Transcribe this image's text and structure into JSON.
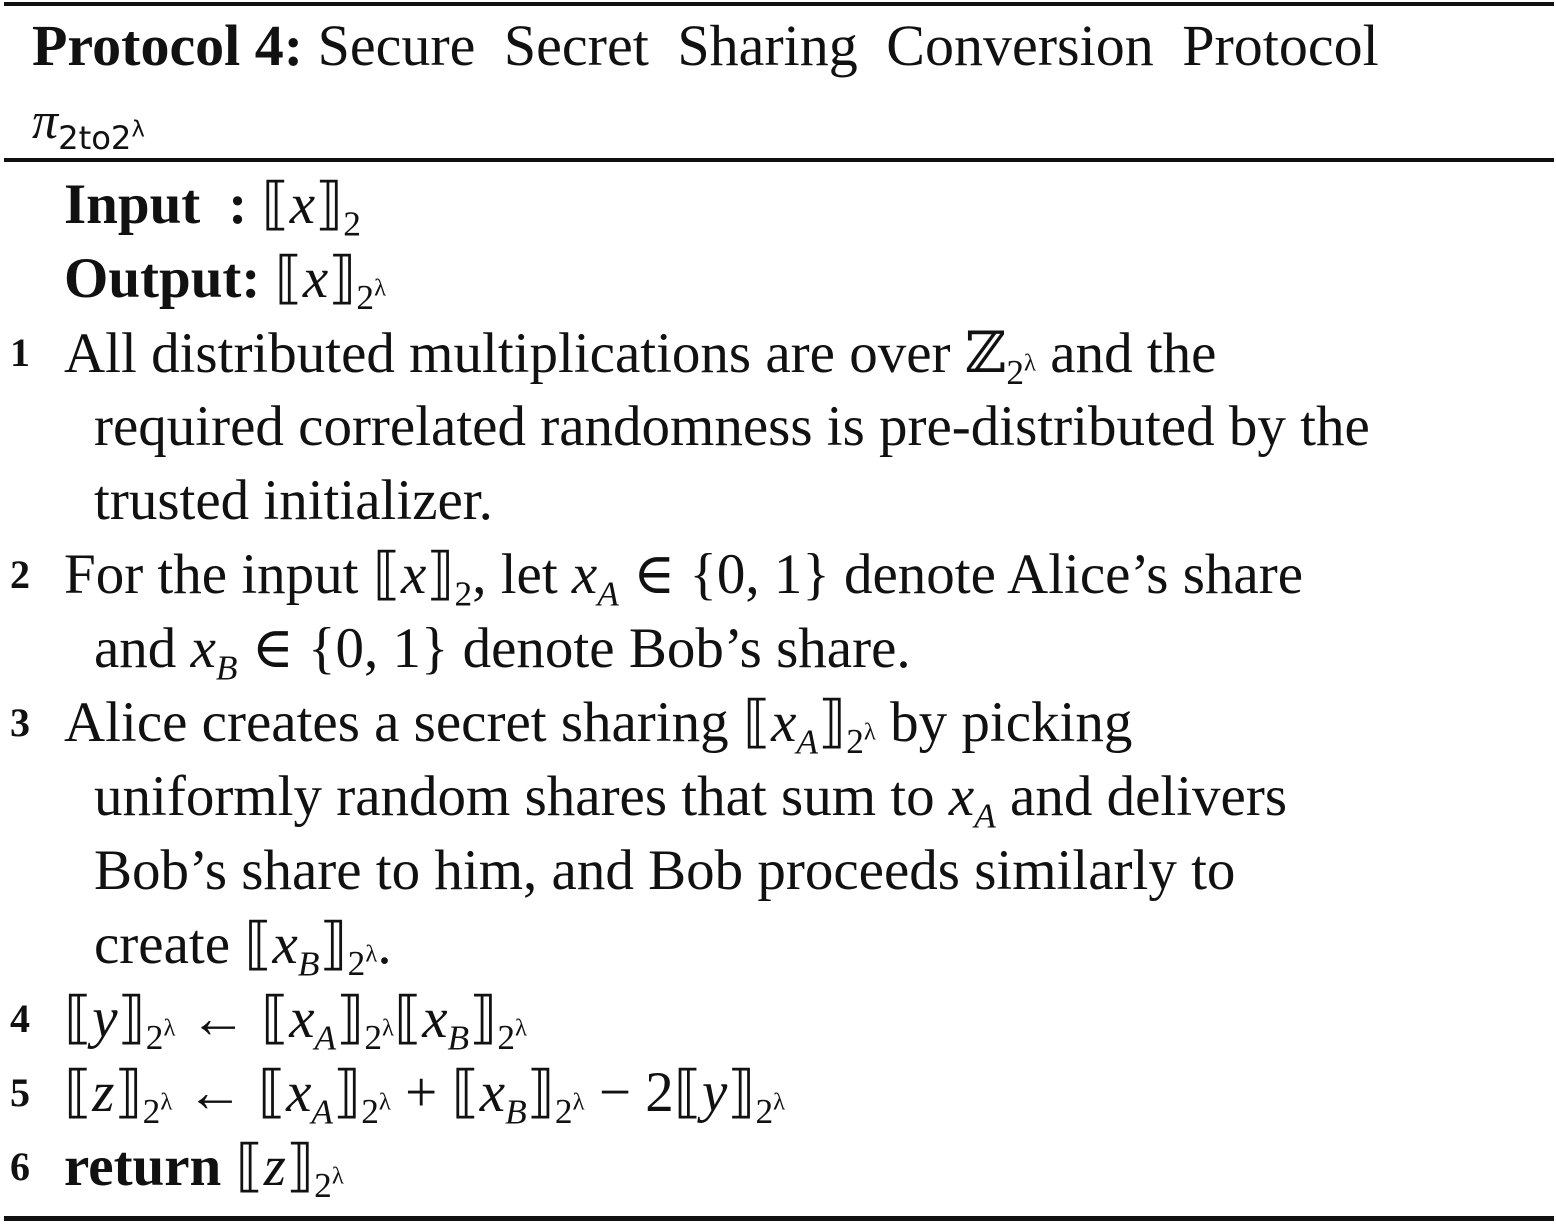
{
  "caption": {
    "label": "Protocol 4:",
    "title": "Secure Secret Sharing Conversion Protocol",
    "symbol": "π",
    "symbol_subscript": "2to2",
    "symbol_superscript": "λ"
  },
  "io": {
    "input_label": "Input",
    "input_colon": ":",
    "input_value": "⟦x⟧",
    "input_sub": "2",
    "output_label": "Output:",
    "output_value": "⟦x⟧",
    "output_sub": "2",
    "output_sup": "λ"
  },
  "steps": [
    {
      "number": "1",
      "lines": [
        "All distributed multiplications are over ℤ",
        "required correlated randomness is pre-distributed by the",
        "trusted initializer."
      ],
      "tail": "and the"
    },
    {
      "number": "2",
      "lines": [
        "For the input ⟦x⟧₂, let x_A ∈ {0, 1} denote Alice’s share",
        "and x_B ∈ {0, 1} denote Bob’s share."
      ]
    },
    {
      "number": "3",
      "lines": [
        "Alice creates a secret sharing ⟦x_A⟧ by picking",
        "uniformly random shares that sum to x_A and delivers",
        "Bob’s share to him, and Bob proceeds similarly to",
        "create ⟦x_B⟧."
      ]
    },
    {
      "number": "4",
      "lines": [
        "⟦y⟧ ← ⟦x_A⟧⟦x_B⟧"
      ]
    },
    {
      "number": "5",
      "lines": [
        "⟦z⟧ ← ⟦x_A⟧ + ⟦x_B⟧ − 2⟦y⟧"
      ]
    },
    {
      "number": "6",
      "keyword": "return",
      "lines": [
        "⟦z⟧"
      ]
    }
  ]
}
